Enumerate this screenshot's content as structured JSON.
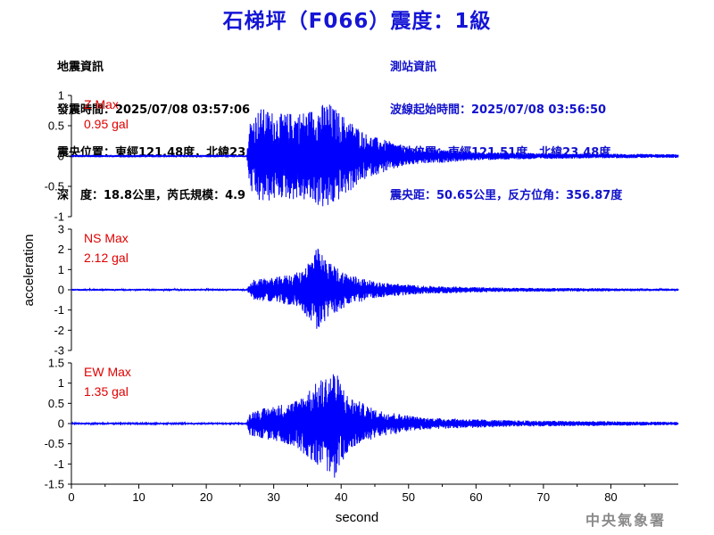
{
  "title": "石梯坪（F066）震度：1級",
  "earthquake_info": {
    "heading": "地震資訊",
    "lines": [
      "發震時間：2025/07/08 03:57:06",
      "震央位置：東經121.48度，北緯23.94度",
      "深　度：18.8公里，芮氏規模：4.9"
    ]
  },
  "station_info": {
    "heading": "測站資訊",
    "lines": [
      "波線起始時間：2025/07/08 03:56:50",
      "測站位置：東經121.51度，北緯23.48度",
      "震央距：50.65公里，反方位角：356.87度"
    ]
  },
  "footer": "中央氣象署",
  "colors": {
    "trace": "#0000ff",
    "title": "#1515d6",
    "max_label": "#e00000",
    "station_text": "#1212cc"
  },
  "chart_data": [
    {
      "type": "line",
      "component": "Z",
      "max_label": "Z Max",
      "max_value": "0.95 gal",
      "ylim": [
        -1,
        1
      ],
      "yticks": [
        1,
        0.5,
        0,
        -0.5,
        -1
      ],
      "xlim": [
        0,
        90
      ],
      "envelope": [
        {
          "t": 0,
          "a": 0.02
        },
        {
          "t": 26,
          "a": 0.02
        },
        {
          "t": 26.5,
          "a": 0.6
        },
        {
          "t": 28,
          "a": 0.8
        },
        {
          "t": 31,
          "a": 0.7
        },
        {
          "t": 35,
          "a": 0.75
        },
        {
          "t": 38,
          "a": 0.9
        },
        {
          "t": 40,
          "a": 0.7
        },
        {
          "t": 44,
          "a": 0.35
        },
        {
          "t": 50,
          "a": 0.15
        },
        {
          "t": 60,
          "a": 0.07
        },
        {
          "t": 75,
          "a": 0.04
        },
        {
          "t": 90,
          "a": 0.03
        }
      ]
    },
    {
      "type": "line",
      "component": "NS",
      "max_label": "NS Max",
      "max_value": "2.12 gal",
      "ylim": [
        -3,
        3
      ],
      "yticks": [
        3,
        2,
        1,
        0,
        -1,
        -2,
        -3
      ],
      "xlim": [
        0,
        90
      ],
      "envelope": [
        {
          "t": 0,
          "a": 0.05
        },
        {
          "t": 26,
          "a": 0.05
        },
        {
          "t": 27,
          "a": 0.5
        },
        {
          "t": 30,
          "a": 0.6
        },
        {
          "t": 34,
          "a": 0.9
        },
        {
          "t": 36.5,
          "a": 2.1
        },
        {
          "t": 38,
          "a": 1.4
        },
        {
          "t": 41,
          "a": 0.8
        },
        {
          "t": 45,
          "a": 0.4
        },
        {
          "t": 52,
          "a": 0.2
        },
        {
          "t": 65,
          "a": 0.1
        },
        {
          "t": 90,
          "a": 0.06
        }
      ]
    },
    {
      "type": "line",
      "component": "EW",
      "max_label": "EW Max",
      "max_value": "1.35 gal",
      "ylim": [
        -1.5,
        1.5
      ],
      "yticks": [
        1.5,
        1,
        0.5,
        0,
        -0.5,
        -1,
        -1.5
      ],
      "xlim": [
        0,
        90
      ],
      "envelope": [
        {
          "t": 0,
          "a": 0.02
        },
        {
          "t": 26,
          "a": 0.02
        },
        {
          "t": 26.5,
          "a": 0.3
        },
        {
          "t": 29,
          "a": 0.4
        },
        {
          "t": 33,
          "a": 0.55
        },
        {
          "t": 37,
          "a": 1.1
        },
        {
          "t": 39,
          "a": 1.35
        },
        {
          "t": 41,
          "a": 0.7
        },
        {
          "t": 45,
          "a": 0.35
        },
        {
          "t": 52,
          "a": 0.15
        },
        {
          "t": 65,
          "a": 0.08
        },
        {
          "t": 90,
          "a": 0.04
        }
      ]
    }
  ],
  "x_axis": {
    "label": "second",
    "ticks": [
      0,
      10,
      20,
      30,
      40,
      50,
      60,
      70,
      80
    ]
  },
  "y_axis": {
    "label": "acceleration"
  }
}
